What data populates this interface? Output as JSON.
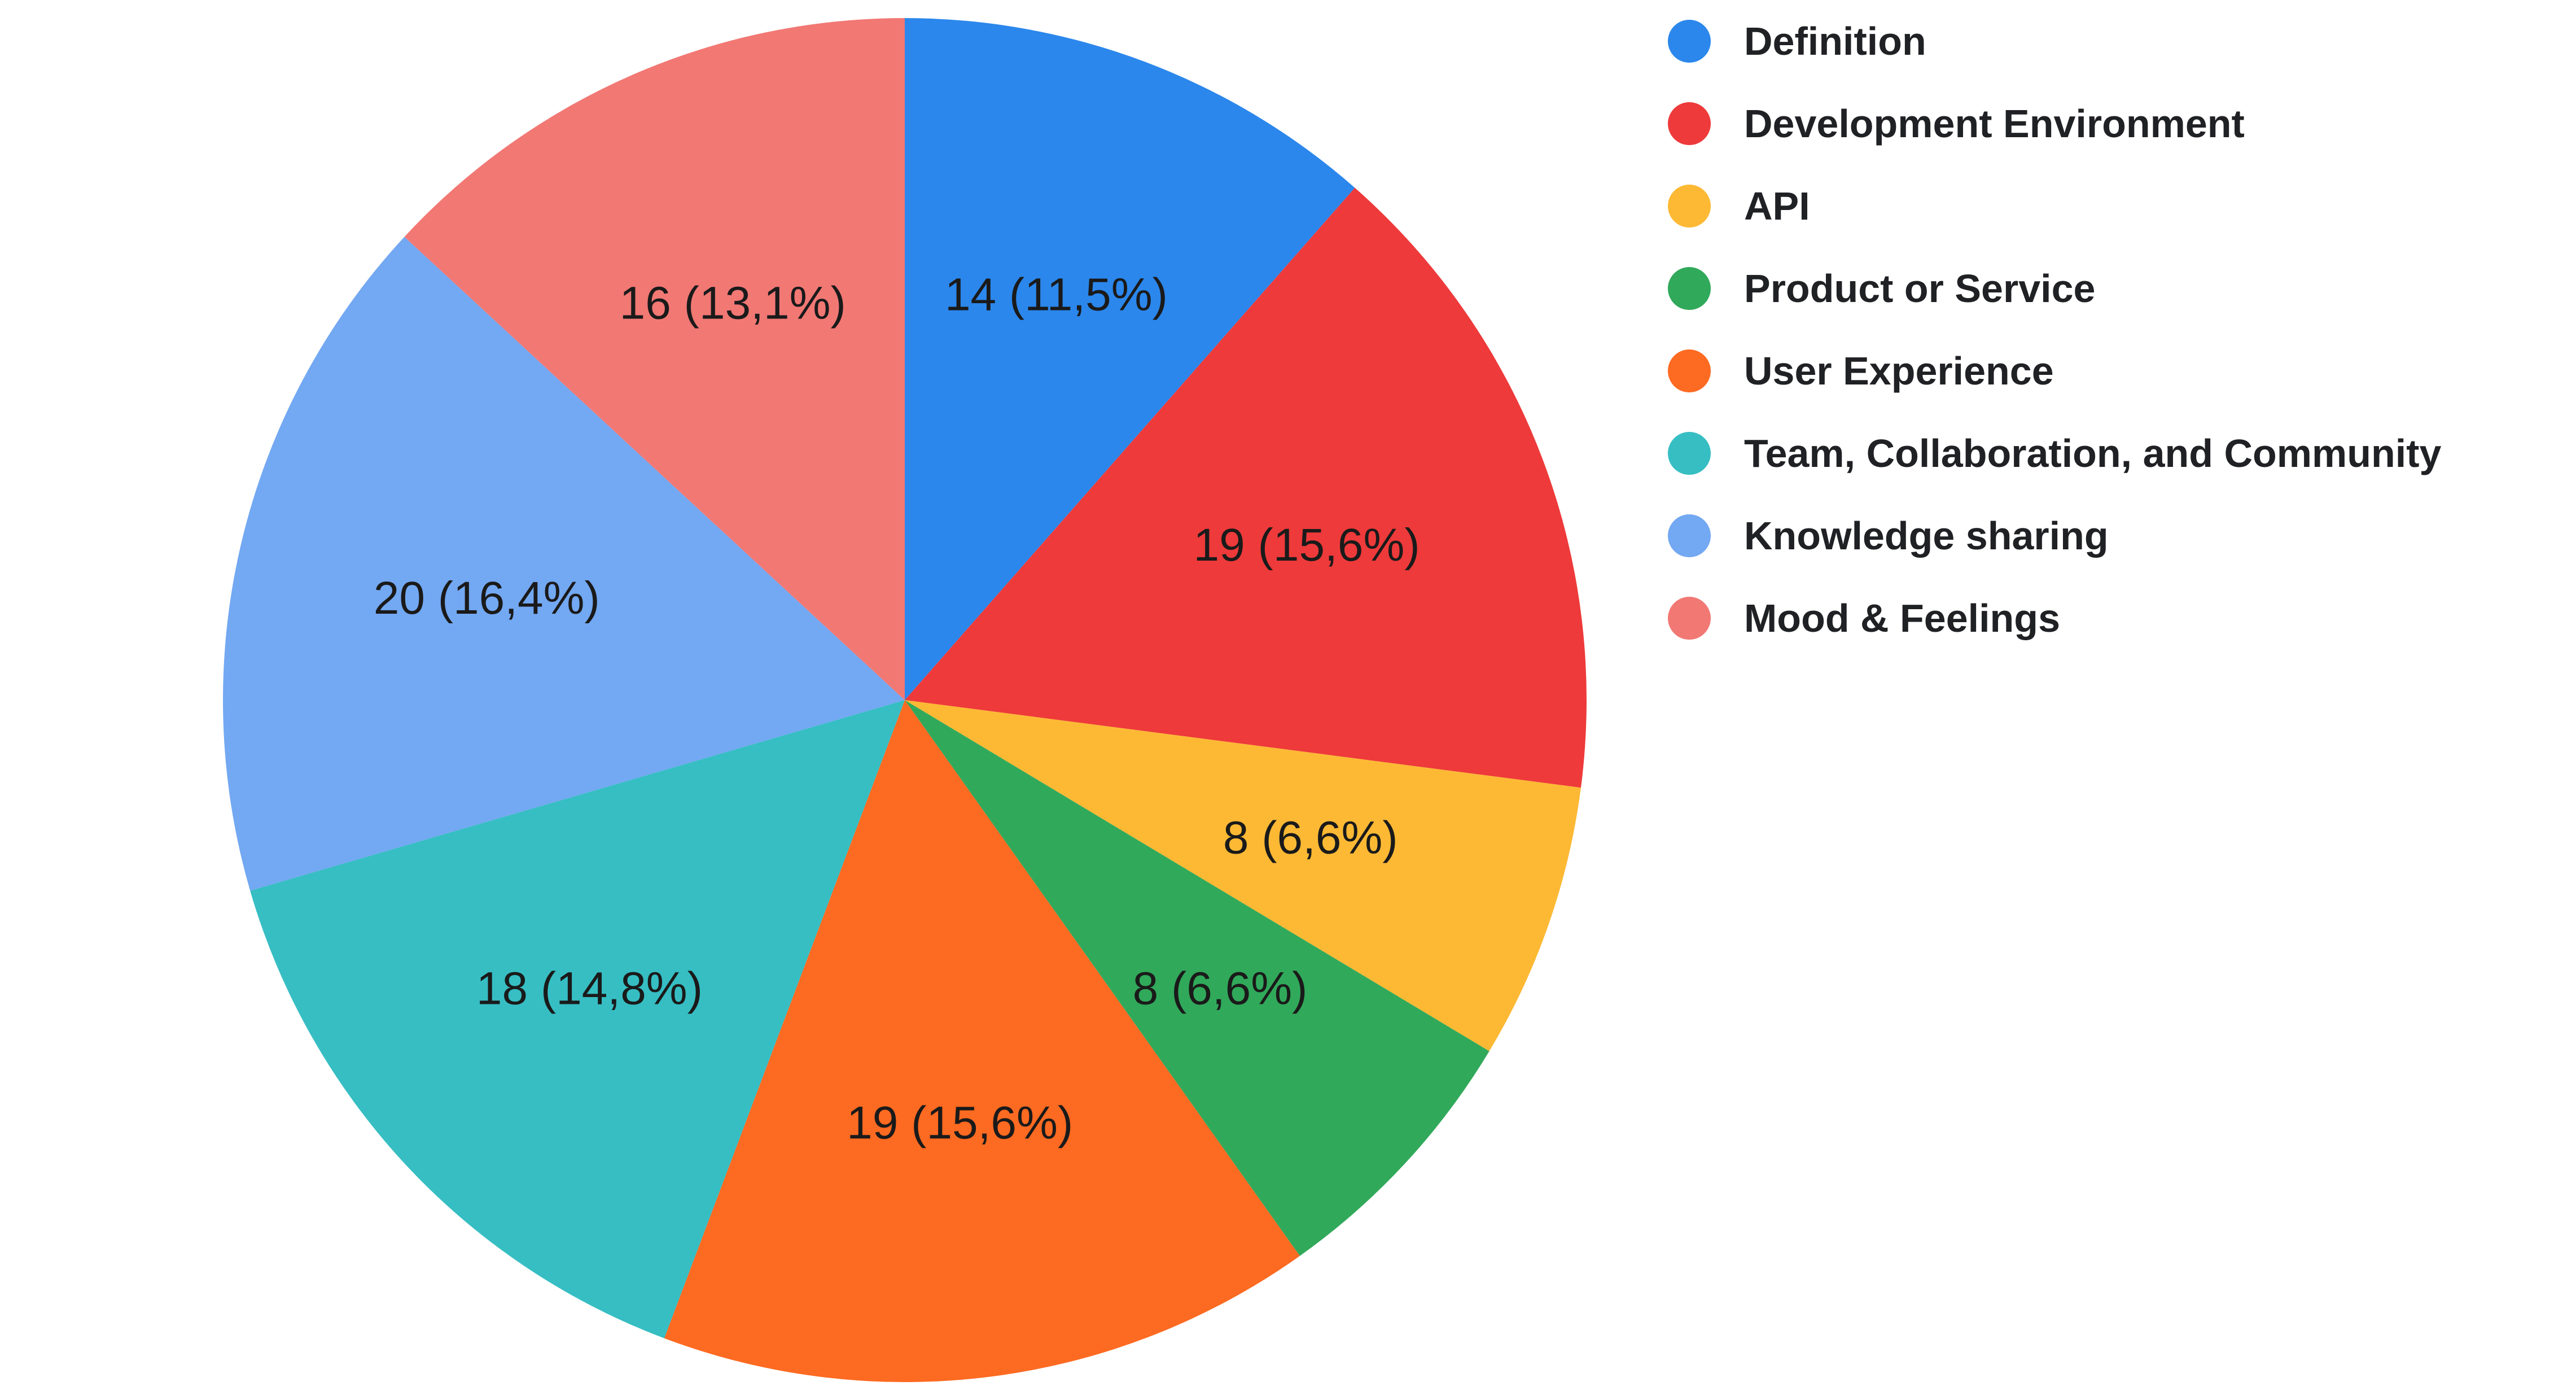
{
  "chart_data": {
    "type": "pie",
    "title": "",
    "legend_position": "right",
    "start_angle": "top, clockwise",
    "slices": [
      {
        "name": "Definition",
        "value": 14,
        "percent_label": "14 (11,5%)",
        "color": "#2B87EC"
      },
      {
        "name": "Development Environment",
        "value": 19,
        "percent_label": "19 (15,6%)",
        "color": "#EE3A3A"
      },
      {
        "name": "API",
        "value": 8,
        "percent_label": "8 (6,6%)",
        "color": "#FDB934"
      },
      {
        "name": "Product or Service",
        "value": 8,
        "percent_label": "8 (6,6%)",
        "color": "#31A95A"
      },
      {
        "name": "User Experience",
        "value": 19,
        "percent_label": "19 (15,6%)",
        "color": "#FD6A21"
      },
      {
        "name": "Team, Collaboration, and Community",
        "value": 18,
        "percent_label": "18 (14,8%)",
        "color": "#36BEC3"
      },
      {
        "name": "Knowledge sharing",
        "value": 20,
        "percent_label": "20 (16,4%)",
        "color": "#73A8F2"
      },
      {
        "name": "Mood & Feelings",
        "value": 16,
        "percent_label": "16 (13,1%)",
        "color": "#F27874"
      }
    ]
  },
  "legend": {
    "items": [
      {
        "label": "Definition",
        "color": "#2B87EC"
      },
      {
        "label": "Development Environment",
        "color": "#EE3A3A"
      },
      {
        "label": "API",
        "color": "#FDB934"
      },
      {
        "label": "Product or Service",
        "color": "#31A95A"
      },
      {
        "label": "User Experience",
        "color": "#FD6A21"
      },
      {
        "label": "Team, Collaboration, and Community",
        "color": "#36BEC3"
      },
      {
        "label": "Knowledge sharing",
        "color": "#73A8F2"
      },
      {
        "label": "Mood & Feelings",
        "color": "#F27874"
      }
    ]
  }
}
